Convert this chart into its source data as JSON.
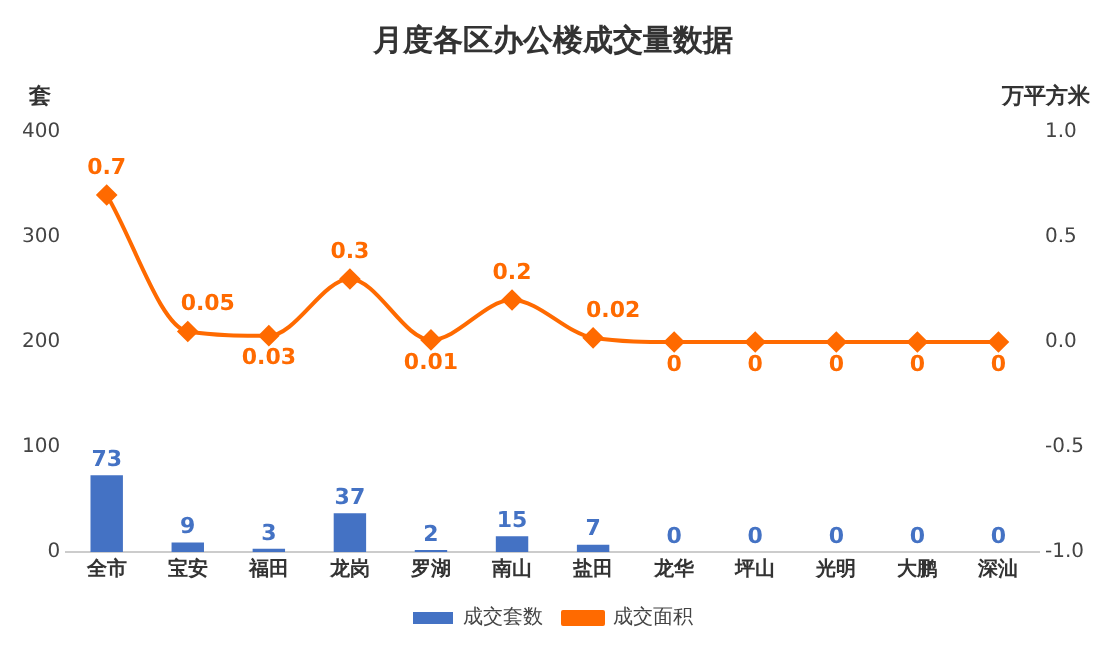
{
  "chart_data": {
    "type": "bar",
    "title": "月度各区办公楼成交量数据",
    "ylabel": "套",
    "y2label": "万平方米",
    "categories": [
      "全市",
      "宝安",
      "福田",
      "龙岗",
      "罗湖",
      "南山",
      "盐田",
      "龙华",
      "坪山",
      "光明",
      "大鹏",
      "深汕"
    ],
    "series": [
      {
        "name": "成交套数",
        "color": "#4472c4",
        "values": [
          73,
          9,
          3,
          37,
          2,
          15,
          7,
          0,
          0,
          0,
          0,
          0
        ]
      },
      {
        "name": "成交面积",
        "type": "line",
        "axis": "y2",
        "color": "#ff6a00",
        "marker": "diamond",
        "values": [
          0.7,
          0.05,
          0.03,
          0.3,
          0.01,
          0.2,
          0.02,
          0,
          0,
          0,
          0,
          0
        ]
      }
    ],
    "ylim": [
      0,
      400
    ],
    "yticks": [
      0,
      100,
      200,
      300,
      400
    ],
    "y2lim": [
      -1,
      1
    ],
    "y2ticks": [
      {
        "value": -1,
        "label": "-1.0"
      },
      {
        "value": -0.5,
        "label": "-0.5"
      },
      {
        "value": 0,
        "label": "0.0"
      },
      {
        "value": 0.5,
        "label": "0.5"
      },
      {
        "value": 1,
        "label": "1.0"
      }
    ],
    "data_labels": true,
    "legend": "bottom",
    "grid": false
  }
}
